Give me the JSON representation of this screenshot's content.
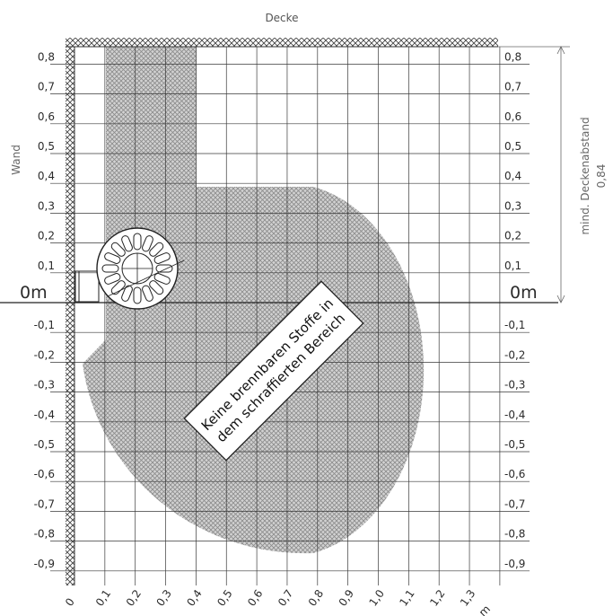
{
  "labels": {
    "ceiling": "Decke",
    "wall": "Wand",
    "zero_left": "0m",
    "zero_right": "0m",
    "min_distance_title": "mind. Deckenabstand",
    "min_distance_value": "0,84",
    "warning_line1": "Keine brennbaren Stoffe in",
    "warning_line2": "dem schraffierten Bereich",
    "x_unit": "m"
  },
  "ticks_y_left": [
    "0,8",
    "0,7",
    "0,6",
    "0,5",
    "0,4",
    "0,3",
    "0,2",
    "0,1",
    "-0,1",
    "-0,2",
    "-0,3",
    "-0,4",
    "-0,5",
    "-0,6",
    "-0,7",
    "-0,8",
    "-0,9"
  ],
  "ticks_y_right": [
    "0,8",
    "0,7",
    "0,6",
    "0,5",
    "0,4",
    "0,3",
    "0,2",
    "0,1",
    "-0,1",
    "-0,2",
    "-0,3",
    "-0,4",
    "-0,5",
    "-0,6",
    "-0,7",
    "-0,8",
    "-0,9"
  ],
  "ticks_x": [
    "0",
    "0,1",
    "0,2",
    "0,3",
    "0,4",
    "0,5",
    "0,6",
    "0,7",
    "0,8",
    "0,9",
    "1,0",
    "1,1",
    "1,2",
    "1,3"
  ],
  "colors": {
    "hatch_fill": "#c9c9c9",
    "hatch_line": "#8a8a8a",
    "grid": "#3a3a3a",
    "text": "#2a2a2a",
    "side_text": "#666666"
  }
}
